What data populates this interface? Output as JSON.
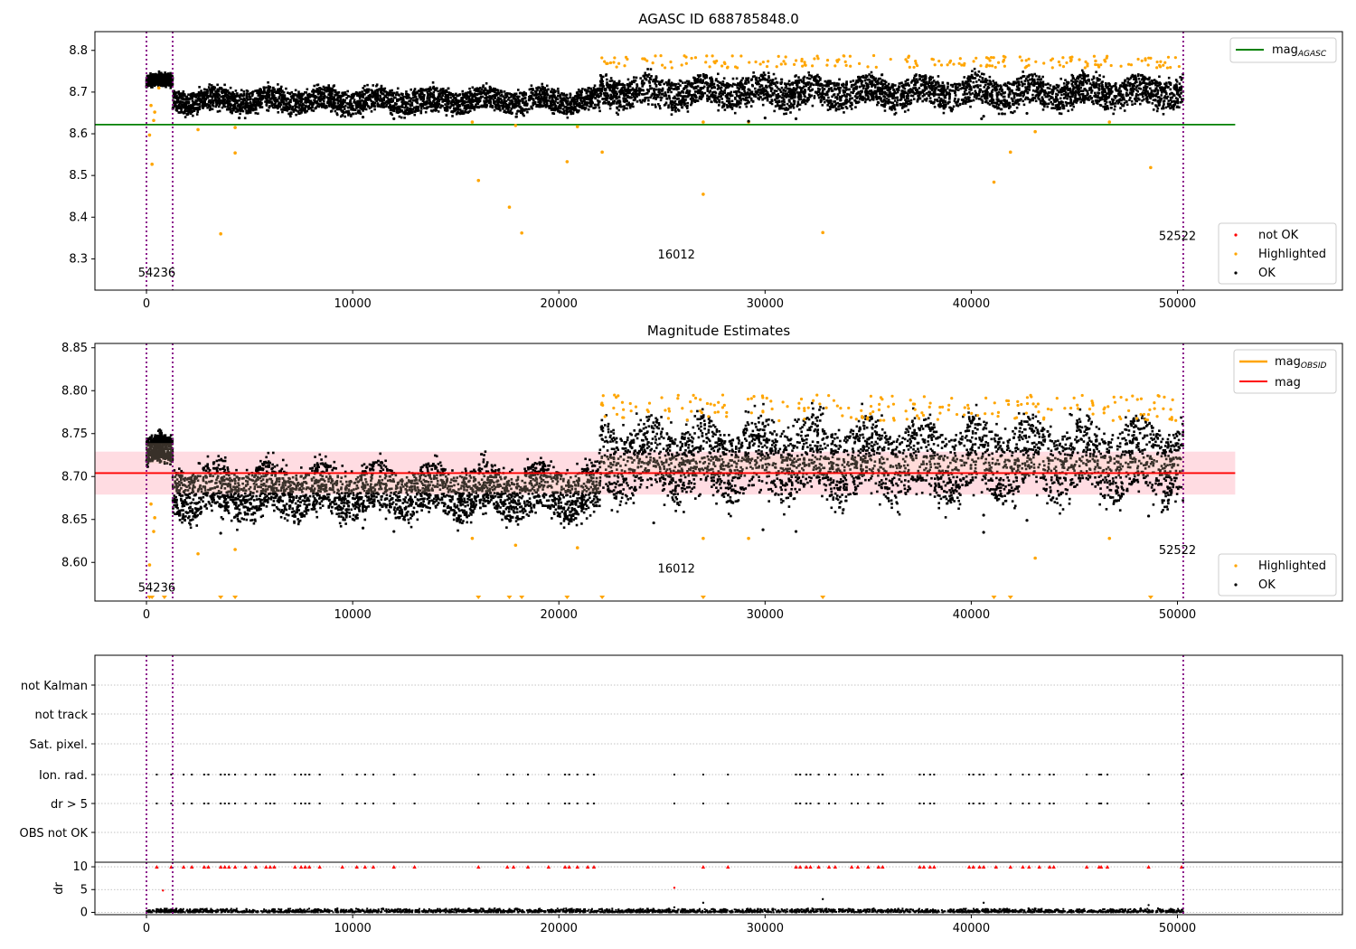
{
  "figure_title": "AGASC ID 688785848.0",
  "colors": {
    "ok": "#000000",
    "highlighted": "#ffa500",
    "not_ok": "#ff0000",
    "mag_agasc": "#008000",
    "mag": "#ff0000",
    "mag_obsid": "#ffa500",
    "band": "#ffc0cb",
    "obsid_band": "#ffdab9",
    "vline": "#800080",
    "grid": "#b0b0b0"
  },
  "chart_data": [
    {
      "type": "scatter",
      "title": "AGASC ID 688785848.0",
      "xlim": [
        -2500,
        58000
      ],
      "ylim": [
        8.225,
        8.845
      ],
      "xticks": [
        0,
        10000,
        20000,
        30000,
        40000,
        50000
      ],
      "xtick_labels": [
        "0",
        "10000",
        "20000",
        "30000",
        "40000",
        "50000"
      ],
      "yticks": [
        8.3,
        8.4,
        8.5,
        8.6,
        8.7,
        8.8
      ],
      "ytick_labels": [
        "8.3",
        "8.4",
        "8.5",
        "8.6",
        "8.7",
        "8.8"
      ],
      "grid": false,
      "legend_top": {
        "placement": "top-right",
        "entries": [
          "mag_AGASC"
        ],
        "label_main": "mag",
        "label_sub": "AGASC"
      },
      "legend_bottom": {
        "placement": "bottom-right",
        "entries": [
          "not OK",
          "Highlighted",
          "OK"
        ]
      },
      "hlines": [
        {
          "name": "mag_AGASC",
          "y": 8.622,
          "x": [
            -2500,
            52800
          ]
        }
      ],
      "vlines": [
        0,
        1270,
        50280
      ],
      "annotations": [
        {
          "text": "54236",
          "x": 500,
          "y": 8.257
        },
        {
          "text": "16012",
          "x": 25700,
          "y": 8.301
        },
        {
          "text": "52522",
          "x": 50000,
          "y": 8.345
        }
      ],
      "scatter_ok": {
        "description": "dense cloud of OK points",
        "segments": [
          {
            "x_from": 0,
            "x_to": 1270,
            "y_low": 8.708,
            "y_high": 8.745,
            "n": 500
          },
          {
            "x_from": 1270,
            "x_to": 22000,
            "y_low": 8.645,
            "y_high": 8.715,
            "n": 3000
          },
          {
            "x_from": 22000,
            "x_to": 50280,
            "y_low": 8.655,
            "y_high": 8.745,
            "n": 3500
          }
        ],
        "upper_stripes_y": [
          8.69,
          8.775
        ],
        "outliers": [
          [
            4500,
            8.638
          ],
          [
            10500,
            8.64
          ],
          [
            12000,
            8.636
          ],
          [
            29200,
            8.63
          ],
          [
            30000,
            8.638
          ],
          [
            31500,
            8.636
          ],
          [
            40500,
            8.636
          ],
          [
            40600,
            8.642
          ],
          [
            41500,
            8.648
          ],
          [
            42700,
            8.649
          ]
        ]
      },
      "highlighted": [
        [
          150,
          8.597
        ],
        [
          220,
          8.668
        ],
        [
          270,
          8.527
        ],
        [
          350,
          8.632
        ],
        [
          400,
          8.652
        ],
        [
          600,
          8.71
        ],
        [
          2500,
          8.61
        ],
        [
          3600,
          8.36
        ],
        [
          4300,
          8.554
        ],
        [
          4300,
          8.615
        ],
        [
          15800,
          8.628
        ],
        [
          16100,
          8.488
        ],
        [
          17600,
          8.424
        ],
        [
          17900,
          8.62
        ],
        [
          18200,
          8.362
        ],
        [
          20400,
          8.533
        ],
        [
          20900,
          8.617
        ],
        [
          22100,
          8.556
        ],
        [
          27000,
          8.455
        ],
        [
          27000,
          8.628
        ],
        [
          29200,
          8.628
        ],
        [
          32800,
          8.363
        ],
        [
          41100,
          8.484
        ],
        [
          41900,
          8.556
        ],
        [
          43100,
          8.605
        ],
        [
          46700,
          8.628
        ],
        [
          48700,
          8.519
        ]
      ]
    },
    {
      "type": "scatter",
      "title": "Magnitude Estimates",
      "xlim": [
        -2500,
        58000
      ],
      "ylim": [
        8.555,
        8.855
      ],
      "xticks": [
        0,
        10000,
        20000,
        30000,
        40000,
        50000
      ],
      "xtick_labels": [
        "0",
        "10000",
        "20000",
        "30000",
        "40000",
        "50000"
      ],
      "yticks": [
        8.6,
        8.65,
        8.7,
        8.75,
        8.8,
        8.85
      ],
      "ytick_labels": [
        "8.60",
        "8.65",
        "8.70",
        "8.75",
        "8.80",
        "8.85"
      ],
      "grid": false,
      "legend_top": {
        "placement": "top-right",
        "entries": [
          "mag_OBSID",
          "mag"
        ],
        "label_main": "mag",
        "label_sub": "OBSID"
      },
      "legend_bottom": {
        "placement": "bottom-right",
        "entries": [
          "Highlighted",
          "OK"
        ]
      },
      "mag_line": {
        "name": "mag",
        "y": 8.704,
        "x": [
          -2500,
          52800
        ]
      },
      "mag_band": [
        8.679,
        8.729
      ],
      "vlines": [
        0,
        1270,
        50280
      ],
      "annotations": [
        {
          "text": "54236",
          "x": 500,
          "y": 8.566
        },
        {
          "text": "16012",
          "x": 25700,
          "y": 8.588
        },
        {
          "text": "52522",
          "x": 50000,
          "y": 8.61
        }
      ],
      "scatter_ok": {
        "segments": [
          {
            "x_from": 0,
            "x_to": 1270,
            "y_low": 8.71,
            "y_high": 8.75,
            "n": 500
          },
          {
            "x_from": 1270,
            "x_to": 22000,
            "y_low": 8.645,
            "y_high": 8.72,
            "n": 3000
          },
          {
            "x_from": 22000,
            "x_to": 50280,
            "y_low": 8.665,
            "y_high": 8.775,
            "n": 3500
          }
        ],
        "outliers": [
          [
            3600,
            8.634
          ],
          [
            10500,
            8.64
          ],
          [
            12000,
            8.636
          ],
          [
            24600,
            8.646
          ],
          [
            29900,
            8.638
          ],
          [
            31500,
            8.636
          ],
          [
            40600,
            8.635
          ],
          [
            40600,
            8.655
          ],
          [
            42700,
            8.649
          ],
          [
            48600,
            8.654
          ]
        ]
      },
      "highlighted": [
        [
          150,
          8.597
        ],
        [
          220,
          8.668
        ],
        [
          350,
          8.636
        ],
        [
          400,
          8.652
        ],
        [
          2500,
          8.61
        ],
        [
          4300,
          8.615
        ],
        [
          15800,
          8.628
        ],
        [
          17900,
          8.62
        ],
        [
          20900,
          8.617
        ],
        [
          27000,
          8.628
        ],
        [
          29200,
          8.628
        ],
        [
          43100,
          8.605
        ],
        [
          46700,
          8.628
        ]
      ],
      "clipped_markers_x": [
        150,
        270,
        870,
        3600,
        4300,
        16100,
        17600,
        18200,
        20400,
        22100,
        27000,
        32800,
        41100,
        41900,
        48700
      ],
      "obsid_segments": [
        {
          "x": [
            0,
            1270
          ],
          "y": 8.727
        },
        {
          "x": [
            1270,
            22000
          ],
          "y": 8.693
        },
        {
          "x": [
            22000,
            50280
          ],
          "y": 8.712
        }
      ]
    },
    {
      "type": "scatter",
      "title": "",
      "xlim": [
        -2500,
        58000
      ],
      "flag_rows": [
        "not Kalman",
        "not track",
        "Sat. pixel.",
        "Ion. rad.",
        "dr > 5",
        "OBS not OK"
      ],
      "flag_x": [
        500,
        1200,
        1800,
        2200,
        2800,
        3000,
        3600,
        3800,
        4000,
        4300,
        4800,
        5300,
        5800,
        6000,
        6200,
        7200,
        7500,
        7700,
        7900,
        8400,
        9500,
        10200,
        10600,
        11000,
        12000,
        13000,
        16100,
        17500,
        17800,
        18500,
        19500,
        20300,
        20500,
        20900,
        21400,
        21700,
        25600,
        27000,
        28200,
        31500,
        31700,
        32000,
        32200,
        32600,
        33100,
        33400,
        34200,
        34500,
        35000,
        35500,
        35700,
        37500,
        37700,
        38000,
        38200,
        39900,
        40100,
        40400,
        40600,
        41200,
        41900,
        42500,
        42800,
        43300,
        43800,
        44000,
        45600,
        46200,
        46300,
        46600,
        48600,
        50200
      ],
      "grid": true
    },
    {
      "type": "scatter",
      "title": "",
      "ylabel": "dr",
      "xlim": [
        -2500,
        58000
      ],
      "ylim": [
        -0.5,
        11
      ],
      "xticks": [
        0,
        10000,
        20000,
        30000,
        40000,
        50000
      ],
      "xtick_labels": [
        "0",
        "10000",
        "20000",
        "30000",
        "40000",
        "50000"
      ],
      "yticks": [
        0,
        5,
        10
      ],
      "ytick_labels": [
        "0",
        "5",
        "10"
      ],
      "grid": true,
      "clip_value": 10,
      "red_markers_x": [
        500,
        1200,
        1800,
        2200,
        2800,
        3000,
        3600,
        3800,
        4000,
        4300,
        4800,
        5300,
        5800,
        6000,
        6200,
        7200,
        7500,
        7700,
        7900,
        8400,
        9500,
        10200,
        10600,
        11000,
        12000,
        13000,
        16100,
        17500,
        17800,
        18500,
        19500,
        20300,
        20500,
        20900,
        21400,
        21700,
        27000,
        28200,
        31500,
        31700,
        32000,
        32200,
        32600,
        33100,
        33400,
        34200,
        34500,
        35000,
        35500,
        35700,
        37500,
        37700,
        38000,
        38200,
        39900,
        40100,
        40400,
        40600,
        41200,
        41900,
        42500,
        42800,
        43300,
        43800,
        44000,
        45600,
        46200,
        46300,
        46600,
        48600,
        50200
      ],
      "red_points": [
        [
          800,
          4.8
        ],
        [
          25600,
          5.4
        ]
      ],
      "black_outliers": [
        [
          25600,
          1.1
        ],
        [
          27000,
          2.1
        ],
        [
          32800,
          2.9
        ],
        [
          40600,
          2.1
        ],
        [
          48600,
          1.6
        ]
      ]
    }
  ]
}
